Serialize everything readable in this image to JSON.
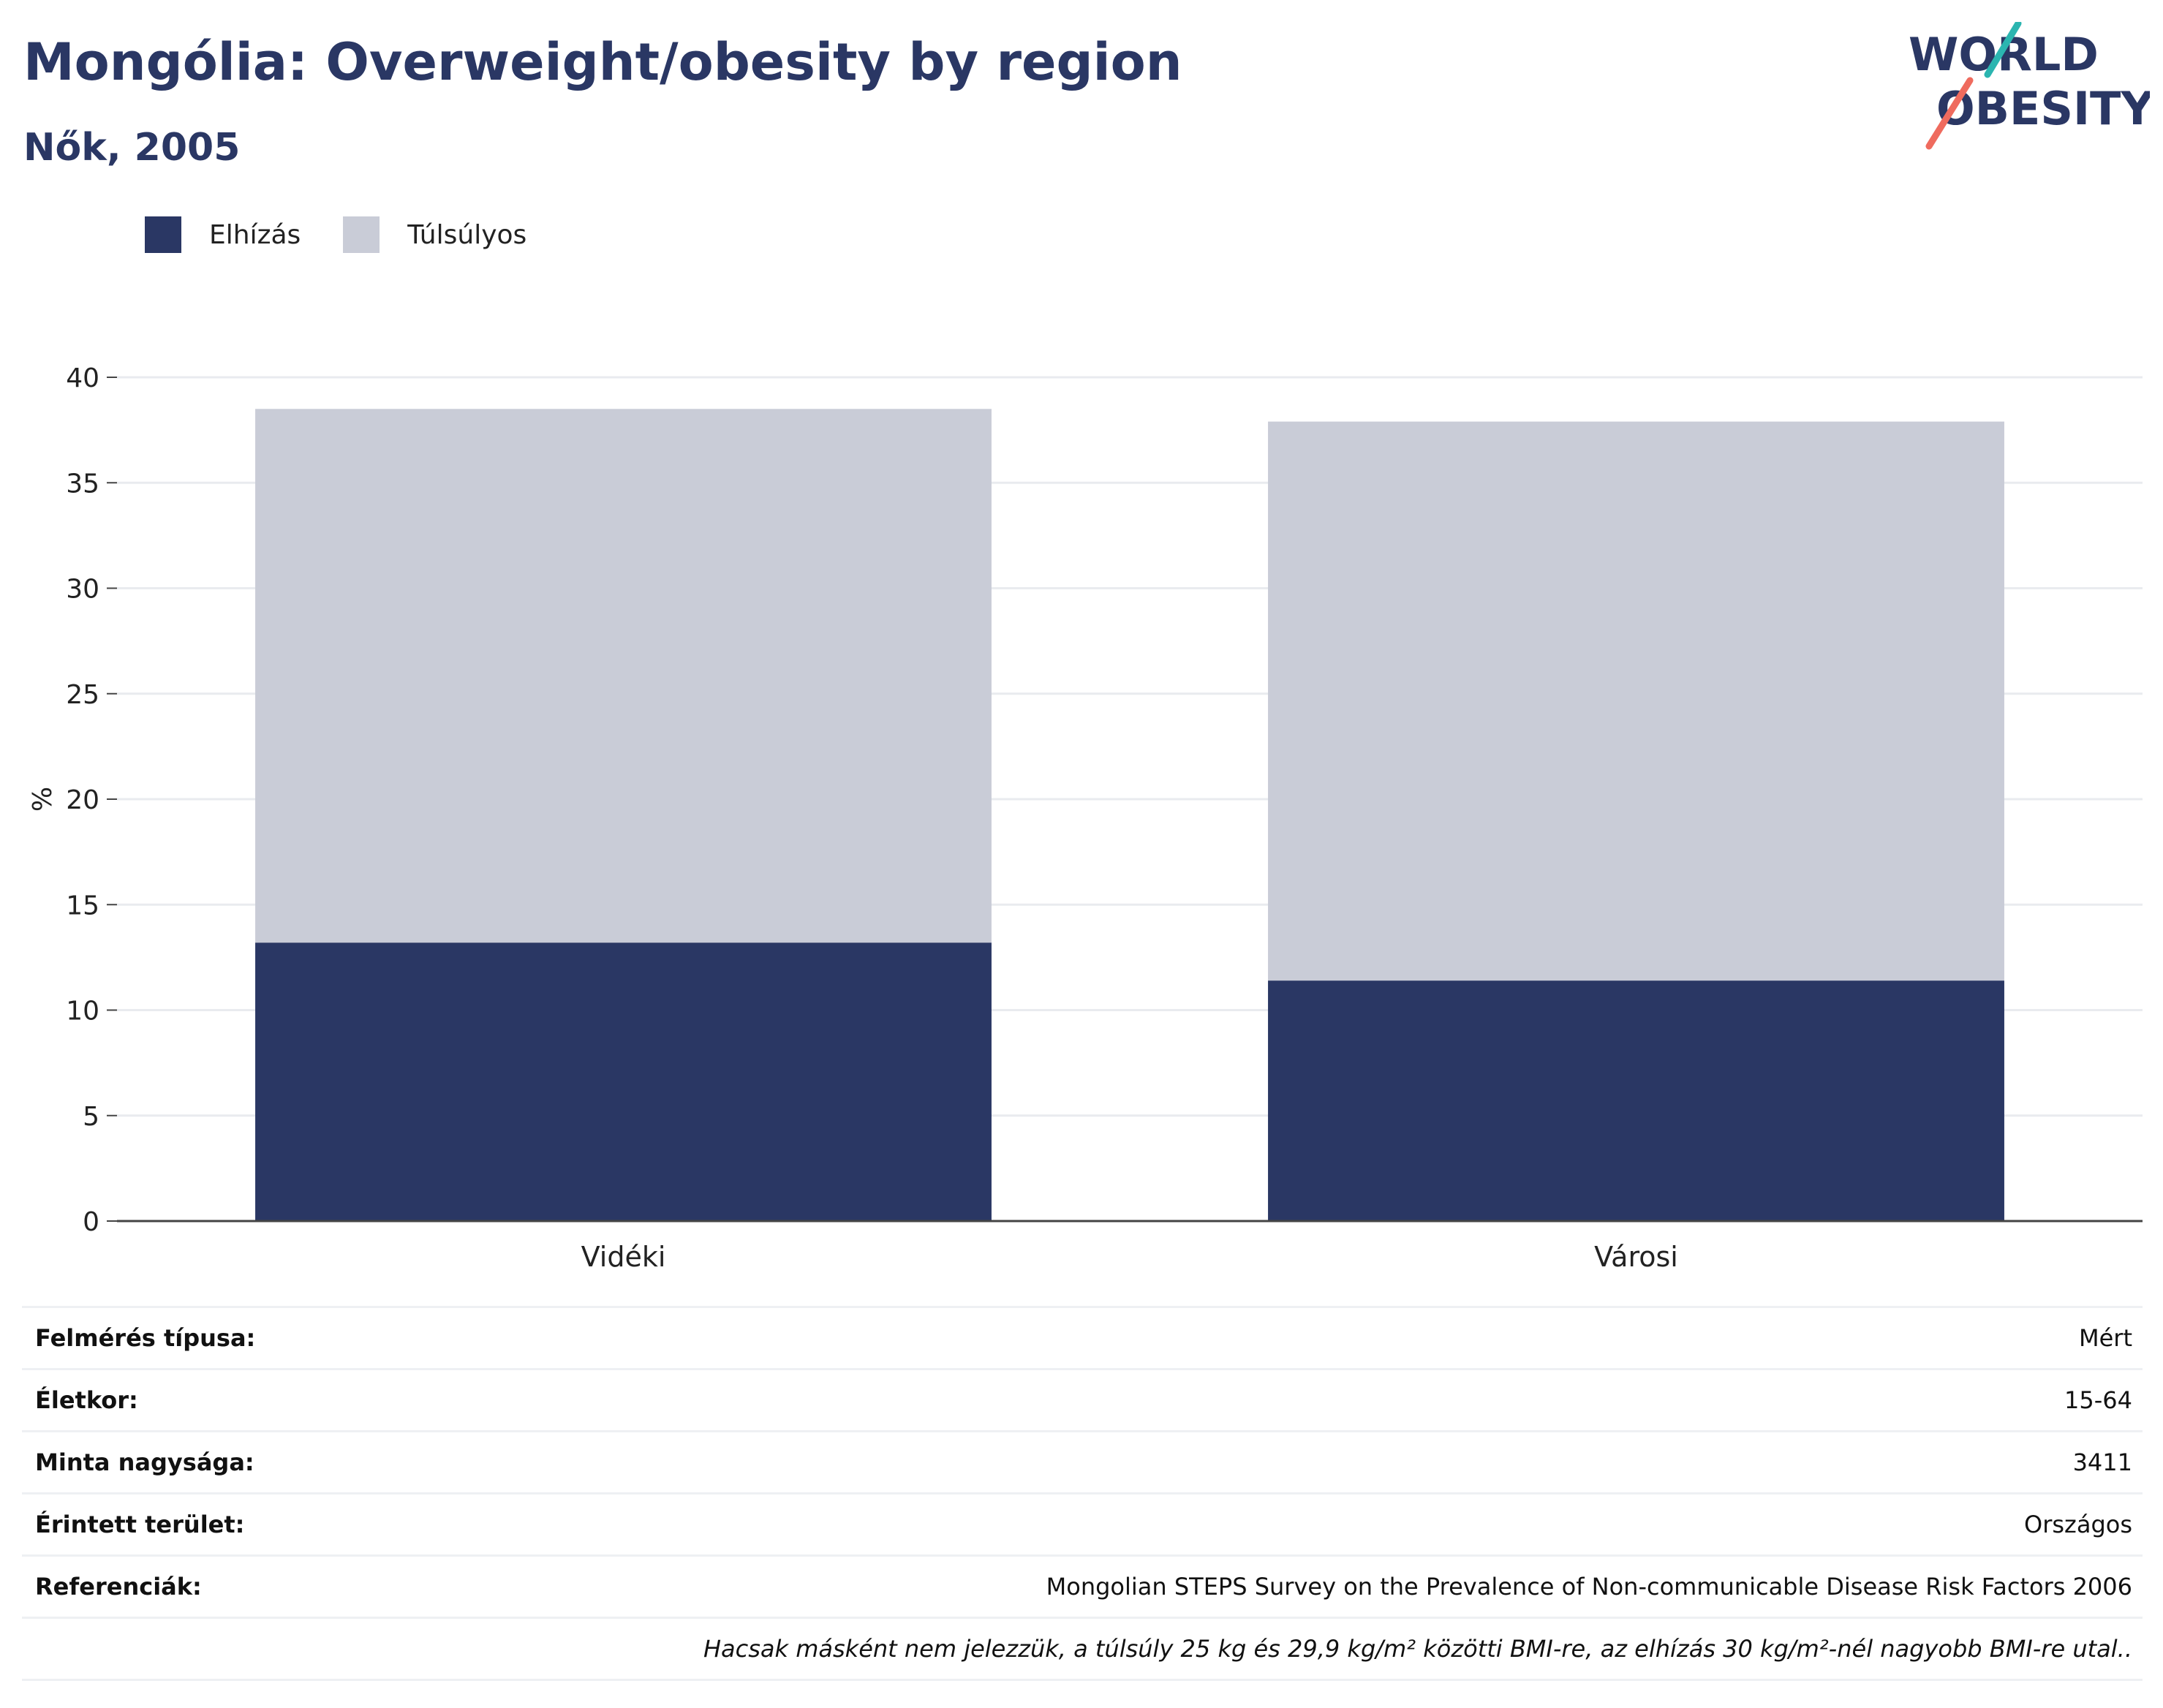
{
  "header": {
    "title": "Mongólia: Overweight/obesity by region",
    "subtitle": "Nők, 2005"
  },
  "logo": {
    "line1": "WORLD",
    "line2": "OBESITY",
    "colors": {
      "text": "#2a3764",
      "teal": "#2bb5b0",
      "coral": "#ef6b5e"
    }
  },
  "legend": [
    {
      "label": "Elhízás",
      "color": "#2a3764"
    },
    {
      "label": "Túlsúlyos",
      "color": "#c9ccd7"
    }
  ],
  "chart_data": {
    "type": "bar",
    "stacked": true,
    "categories": [
      "Vidéki",
      "Városi"
    ],
    "series": [
      {
        "name": "Elhízás",
        "values": [
          13.2,
          11.4
        ],
        "color": "#2a3764"
      },
      {
        "name": "Túlsúlyos",
        "values": [
          25.3,
          26.5
        ],
        "color": "#c9ccd7"
      }
    ],
    "ylabel": "%",
    "ylim": [
      0,
      40
    ],
    "yticks": [
      0,
      5,
      10,
      15,
      20,
      25,
      30,
      35,
      40
    ],
    "grid": true
  },
  "info": {
    "rows": [
      {
        "label": "Felmérés típusa:",
        "value": "Mért"
      },
      {
        "label": "Életkor:",
        "value": "15-64"
      },
      {
        "label": "Minta nagysága:",
        "value": "3411"
      },
      {
        "label": "Érintett terület:",
        "value": "Országos"
      },
      {
        "label": "Referenciák:",
        "value": "Mongolian STEPS Survey on the Prevalence of Non-communicable Disease Risk Factors 2006"
      }
    ],
    "note": "Hacsak másként nem jelezzük, a túlsúly 25 kg és 29,9 kg/m² közötti BMI-re, az elhízás 30 kg/m²-nél nagyobb BMI-re utal.."
  }
}
